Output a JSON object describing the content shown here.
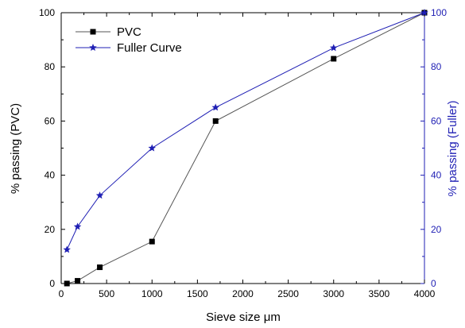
{
  "chart_data": {
    "type": "line",
    "xlabel": "Sieve size μm",
    "ylabel_left": "% passing (PVC)",
    "ylabel_right": "% passing (Fuller)",
    "xlim": [
      0,
      4000
    ],
    "xticks": [
      0,
      500,
      1000,
      1500,
      2000,
      2500,
      3000,
      3500,
      4000
    ],
    "ylim_left": [
      0,
      100
    ],
    "ylim_right": [
      0,
      100
    ],
    "yticks": [
      0,
      20,
      40,
      60,
      80,
      100
    ],
    "grid": false,
    "legend_position": "top-left",
    "colors": {
      "left_axis": "#000000",
      "right_axis": "#1f1fb4"
    },
    "series": [
      {
        "name": "PVC",
        "axis": "left",
        "color": "#000000",
        "line_color": "#555555",
        "marker": "square",
        "x": [
          63,
          180,
          425,
          1000,
          1700,
          3000,
          4000
        ],
        "y": [
          0,
          1,
          6,
          15.5,
          60,
          83,
          100
        ]
      },
      {
        "name": "Fuller Curve",
        "axis": "right",
        "color": "#1f1fb4",
        "line_color": "#1f1fb4",
        "marker": "star",
        "x": [
          63,
          180,
          425,
          1000,
          1700,
          3000,
          4000
        ],
        "y": [
          12.5,
          21,
          32.5,
          50,
          65,
          87,
          100
        ]
      }
    ]
  }
}
